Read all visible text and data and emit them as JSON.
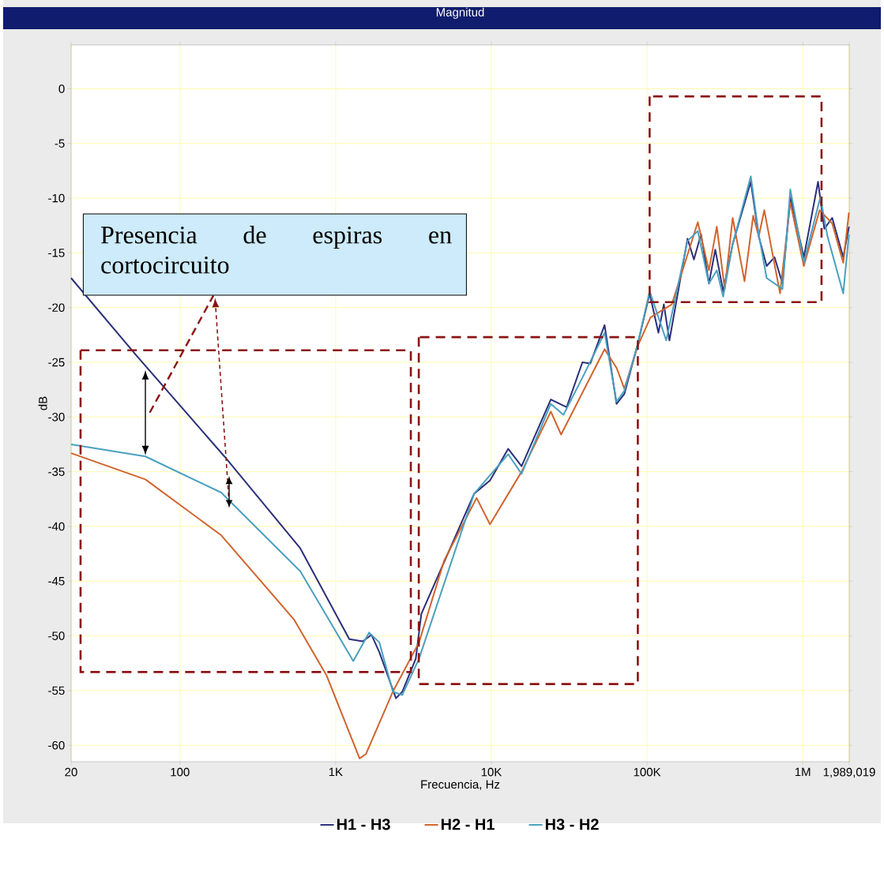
{
  "chart_data": {
    "type": "line",
    "title": "Magnitud",
    "xlabel": "Frecuencia, Hz",
    "ylabel": "dB",
    "log": "x",
    "grid": true,
    "legend": "bottom",
    "line_style": "solid",
    "xlim": [
      20,
      1989019
    ],
    "ylim": [
      -61.5,
      4
    ],
    "xticks": [
      20,
      100,
      {
        "value": 1000,
        "label": "1K"
      },
      {
        "value": 10000,
        "label": "10K"
      },
      {
        "value": 100000,
        "label": "100K"
      },
      {
        "value": 1000000,
        "label": "1M"
      },
      {
        "value": 1989019,
        "label": "1,989,019"
      }
    ],
    "yticks": [
      0,
      -5,
      -10,
      -15,
      -20,
      -25,
      -30,
      -35,
      -40,
      -45,
      -50,
      -55,
      -60
    ],
    "annotations": [
      "Presencia de espiras en cortocircuito"
    ],
    "series": [
      {
        "name": "H1 - H3",
        "color": "#2b2f7a",
        "x": [
          20,
          52,
          193,
          593,
          1224,
          1494,
          1698,
          1910,
          2440,
          2680,
          3270,
          3550,
          7760,
          9800,
          12830,
          15640,
          24100,
          30460,
          38460,
          43240,
          53380,
          63680,
          71480,
          87260,
          103900,
          118300,
          128200,
          139200,
          182000,
          200000,
          222200,
          249600,
          274200,
          308200,
          354800,
          463800,
          521600,
          586200,
          659200,
          740800,
          831800,
          1016000,
          1253800,
          1376000,
          1546000,
          1820000,
          1980000
        ],
        "values": [
          -17.3,
          -24.3,
          -33.6,
          -42.0,
          -50.3,
          -50.5,
          -49.9,
          -51.5,
          -55.7,
          -55.1,
          -52.1,
          -48.0,
          -37.0,
          -35.8,
          -32.9,
          -34.5,
          -28.4,
          -29.1,
          -25.0,
          -25.1,
          -21.6,
          -28.8,
          -27.9,
          -23.3,
          -18.7,
          -22.3,
          -19.7,
          -23.0,
          -13.7,
          -15.6,
          -13.3,
          -17.8,
          -14.7,
          -18.5,
          -14.2,
          -8.5,
          -13.5,
          -16.2,
          -15.4,
          -17.8,
          -9.9,
          -15.4,
          -8.5,
          -12.8,
          -11.8,
          -15.4,
          -12.6
        ]
      },
      {
        "name": "H2 - H1",
        "color": "#d0642e",
        "x": [
          20,
          60,
          184,
          540,
          873,
          1425,
          1565,
          2330,
          3430,
          4980,
          8040,
          9800,
          15640,
          24100,
          28060,
          53380,
          63680,
          71480,
          87260,
          105200,
          144200,
          211800,
          249600,
          280600,
          315400,
          354800,
          422800,
          480600,
          521600,
          566200,
          714800,
          831800,
          1016000,
          1282800,
          1546000,
          1820000,
          1980000
        ],
        "values": [
          -33.3,
          -35.7,
          -40.8,
          -48.5,
          -53.6,
          -61.2,
          -60.8,
          -55.1,
          -50.6,
          -43.1,
          -37.4,
          -39.8,
          -35.0,
          -29.5,
          -31.6,
          -23.8,
          -25.5,
          -27.4,
          -23.5,
          -20.9,
          -19.7,
          -12.2,
          -16.6,
          -12.6,
          -18.3,
          -11.8,
          -17.6,
          -11.6,
          -13.5,
          -11.1,
          -18.7,
          -10.4,
          -16.2,
          -11.1,
          -12.3,
          -15.9,
          -11.3
        ]
      },
      {
        "name": "H3 - H2",
        "color": "#4aa0c0",
        "x": [
          20,
          60,
          184,
          593,
          1298,
          1640,
          1910,
          2330,
          2680,
          3430,
          7760,
          12830,
          15640,
          24100,
          29060,
          38460,
          53380,
          63680,
          71480,
          87260,
          103900,
          132800,
          182000,
          211800,
          249600,
          280600,
          308200,
          354800,
          463800,
          521600,
          586200,
          740800,
          831800,
          1016000,
          1297400,
          1442000,
          1820000,
          1980000
        ],
        "values": [
          -32.5,
          -33.6,
          -36.9,
          -44.1,
          -52.3,
          -49.7,
          -50.6,
          -55.1,
          -55.4,
          -52.1,
          -37.0,
          -33.4,
          -35.2,
          -28.8,
          -29.8,
          -26.4,
          -22.3,
          -28.6,
          -27.6,
          -23.3,
          -18.5,
          -23.0,
          -13.9,
          -13.0,
          -17.8,
          -16.6,
          -19.0,
          -14.2,
          -8.0,
          -13.3,
          -17.3,
          -18.3,
          -9.2,
          -15.9,
          -9.9,
          -13.5,
          -18.7,
          -13.3
        ]
      }
    ]
  }
}
